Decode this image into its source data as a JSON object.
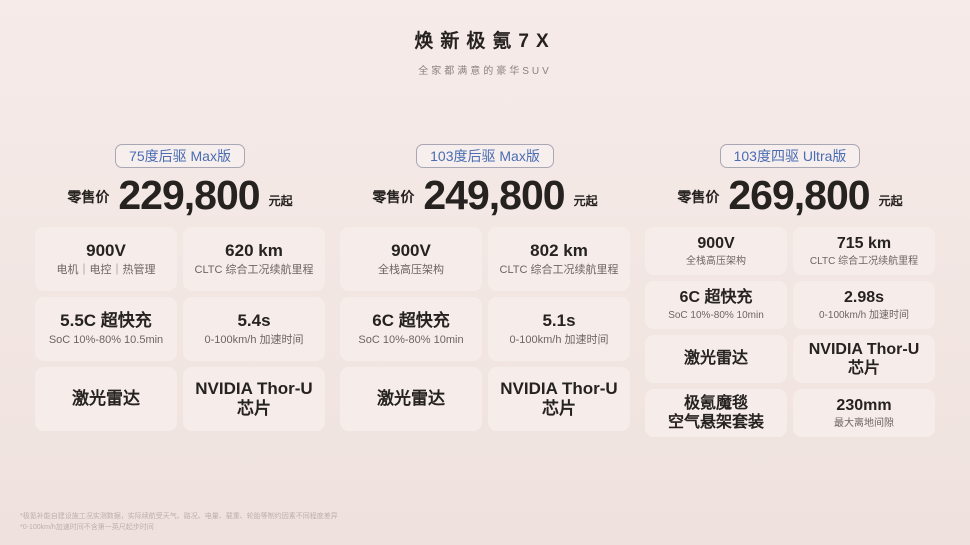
{
  "header": {
    "title": "焕新极氪7X",
    "subtitle": "全家都满意的豪华SUV"
  },
  "pricing_labels": {
    "prefix": "零售价",
    "suffix": "元起"
  },
  "trims": [
    {
      "badge": "75度后驱 Max版",
      "price": "229,800",
      "specs": [
        {
          "value": "900V",
          "label": "电机｜电控｜热管理"
        },
        {
          "value": "620 km",
          "label": "CLTC 综合工况续航里程"
        },
        {
          "value": "5.5C 超快充",
          "label": "SoC 10%-80% 10.5min"
        },
        {
          "value": "5.4s",
          "label": "0-100km/h 加速时间"
        },
        {
          "value": "激光雷达",
          "label": ""
        },
        {
          "value": "NVIDIA Thor-U 芯片",
          "label": ""
        }
      ]
    },
    {
      "badge": "103度后驱 Max版",
      "price": "249,800",
      "specs": [
        {
          "value": "900V",
          "label": "全栈高压架构"
        },
        {
          "value": "802 km",
          "label": "CLTC 综合工况续航里程"
        },
        {
          "value": "6C 超快充",
          "label": "SoC 10%-80% 10min"
        },
        {
          "value": "5.1s",
          "label": "0-100km/h 加速时间"
        },
        {
          "value": "激光雷达",
          "label": ""
        },
        {
          "value": "NVIDIA Thor-U 芯片",
          "label": ""
        }
      ]
    },
    {
      "badge": "103度四驱 Ultra版",
      "price": "269,800",
      "specs": [
        {
          "value": "900V",
          "label": "全栈高压架构"
        },
        {
          "value": "715 km",
          "label": "CLTC 综合工况续航里程"
        },
        {
          "value": "6C 超快充",
          "label": "SoC 10%-80% 10min"
        },
        {
          "value": "2.98s",
          "label": "0-100km/h 加速时间"
        },
        {
          "value": "激光雷达",
          "label": ""
        },
        {
          "value": "NVIDIA Thor-U 芯片",
          "label": ""
        },
        {
          "value": "极氪魔毯\n空气悬架套装",
          "label": ""
        },
        {
          "value": "230mm",
          "label": "最大离地间隙"
        }
      ]
    }
  ],
  "footnotes": [
    "*极氪补能自建设施工况实测数据，实际续航受天气、路况、电量、载重、轮胎等制约因素不同程度差异",
    "*0-100km/h加速时间不含第一英尺起步时间"
  ],
  "colors": {
    "bg_top": "#f6ebe9",
    "bg_bottom": "#efe2de",
    "card_bg": "#f6edeb",
    "badge_text": "#4a6cb3",
    "badge_border": "#a9a7b4",
    "text_primary": "#262220",
    "text_secondary": "#6e6462",
    "text_muted": "#8d8180",
    "footnote": "#bdafab"
  }
}
